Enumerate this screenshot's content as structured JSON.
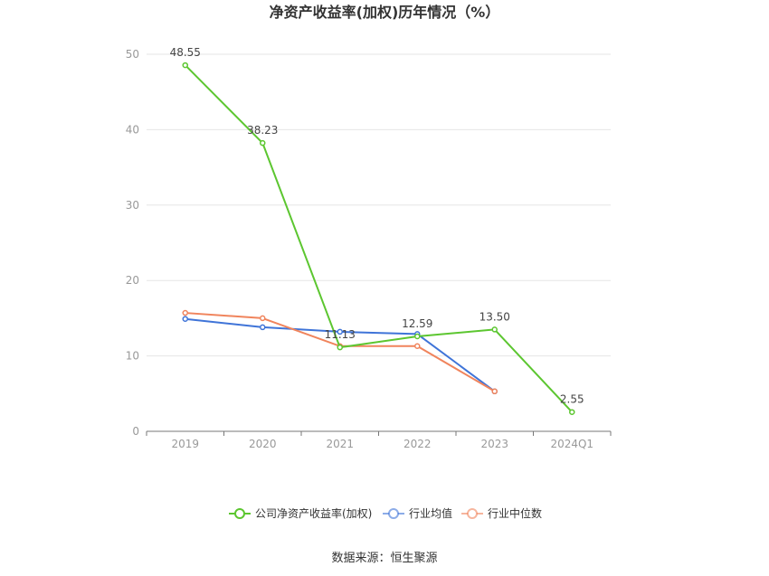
{
  "chart_data": {
    "type": "line",
    "title": "净资产收益率(加权)历年情况（%）",
    "categories": [
      "2019",
      "2020",
      "2021",
      "2022",
      "2023",
      "2024Q1"
    ],
    "ylim": [
      0,
      50
    ],
    "yticks": [
      0,
      10,
      20,
      30,
      40,
      50
    ],
    "grid": true,
    "legend_position": "bottom",
    "series": [
      {
        "name": "公司净资产收益率(加权)",
        "color": "#5cc630",
        "values": [
          48.55,
          38.23,
          11.13,
          12.59,
          13.5,
          2.55
        ],
        "labels": [
          "48.55",
          "38.23",
          "11.13",
          "12.59",
          "13.50",
          "2.55"
        ]
      },
      {
        "name": "行业均值",
        "color": "#3f74d8",
        "values": [
          14.9,
          13.8,
          13.2,
          12.9,
          5.3,
          null
        ]
      },
      {
        "name": "行业中位数",
        "color": "#f0845c",
        "values": [
          15.7,
          15.0,
          11.3,
          11.3,
          5.3,
          null
        ]
      }
    ],
    "source": "数据来源：恒生聚源"
  }
}
